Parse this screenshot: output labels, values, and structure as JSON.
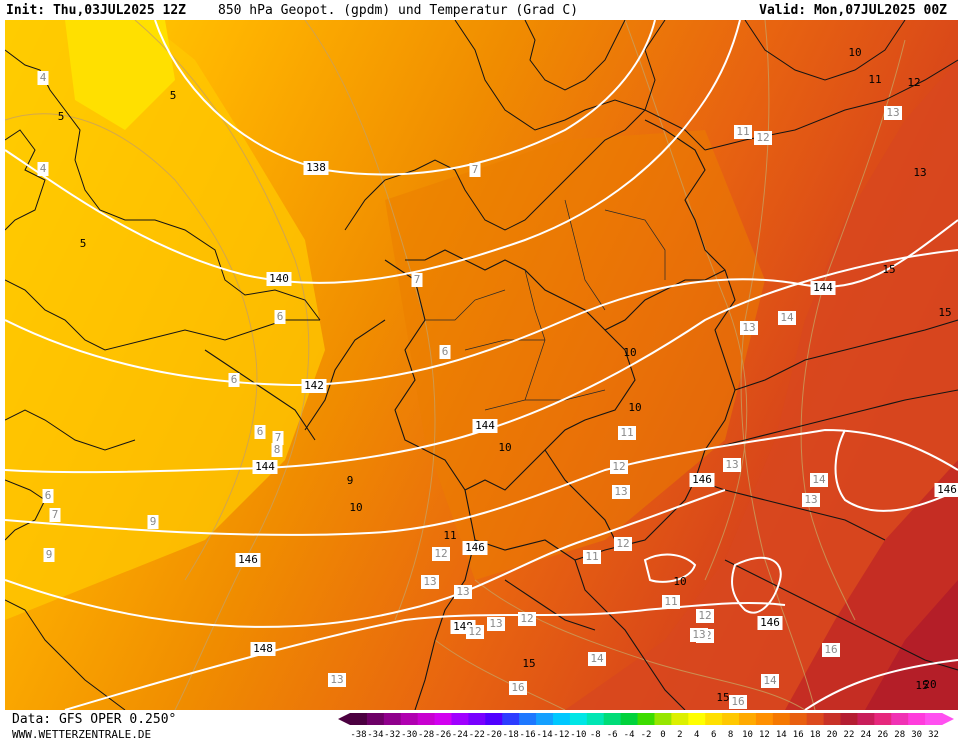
{
  "header": {
    "init": "Init: Thu,03JUL2025 12Z",
    "title": "850 hPa Geopot. (gpdm) und Temperatur (Grad C)",
    "valid": "Valid: Mon,07JUL2025 00Z"
  },
  "footer": {
    "source": "Data: GFS OPER 0.250°",
    "website": "WWW.WETTERZENTRALE.DE"
  },
  "legend": {
    "ticks": [
      "-38",
      "-34",
      "-32",
      "-30",
      "-28",
      "-26",
      "-24",
      "-22",
      "-20",
      "-18",
      "-16",
      "-14",
      "-12",
      "-10",
      "-8",
      "-6",
      "-4",
      "-2",
      "0",
      "2",
      "4",
      "6",
      "8",
      "10",
      "12",
      "14",
      "16",
      "18",
      "20",
      "22",
      "24",
      "26",
      "28",
      "30",
      "32"
    ],
    "colors": [
      "#4b0040",
      "#6d0066",
      "#8f008c",
      "#b000b0",
      "#c800d0",
      "#d200f0",
      "#a000ff",
      "#7800ff",
      "#5000ff",
      "#2c3cff",
      "#1e78ff",
      "#14a0ff",
      "#00c8ff",
      "#00e6e6",
      "#00e6b4",
      "#00dc78",
      "#00d23c",
      "#3cdc00",
      "#96e600",
      "#dcf000",
      "#ffff00",
      "#ffe000",
      "#ffc800",
      "#ffaa00",
      "#ff9000",
      "#f57800",
      "#e85f10",
      "#dc4a1e",
      "#c83228",
      "#b41e32",
      "#c81e5a",
      "#e6287d",
      "#f032b4",
      "#ff3cdc",
      "#ff50f0"
    ]
  },
  "geopotential_labels": [
    {
      "text": "138"
    },
    {
      "text": "140"
    },
    {
      "text": "142"
    },
    {
      "text": "144"
    },
    {
      "text": "144"
    },
    {
      "text": "144"
    },
    {
      "text": "146"
    },
    {
      "text": "146"
    },
    {
      "text": "146"
    },
    {
      "text": "146"
    },
    {
      "text": "146"
    },
    {
      "text": "148"
    },
    {
      "text": "148"
    }
  ],
  "temperature_labels_black": [
    {
      "text": "10"
    },
    {
      "text": "11"
    },
    {
      "text": "12"
    },
    {
      "text": "13"
    },
    {
      "text": "15"
    },
    {
      "text": "15"
    },
    {
      "text": "15"
    },
    {
      "text": "5"
    },
    {
      "text": "5"
    },
    {
      "text": "5"
    },
    {
      "text": "9"
    },
    {
      "text": "10"
    },
    {
      "text": "10"
    },
    {
      "text": "10"
    },
    {
      "text": "10"
    },
    {
      "text": "10"
    },
    {
      "text": "11"
    },
    {
      "text": "20"
    },
    {
      "text": "15"
    },
    {
      "text": "15"
    }
  ],
  "temperature_labels_white": [
    {
      "text": "4"
    },
    {
      "text": "4"
    },
    {
      "text": "11"
    },
    {
      "text": "12"
    },
    {
      "text": "7"
    },
    {
      "text": "6"
    },
    {
      "text": "6"
    },
    {
      "text": "6"
    },
    {
      "text": "7"
    },
    {
      "text": "8"
    },
    {
      "text": "9"
    },
    {
      "text": "6"
    },
    {
      "text": "7"
    },
    {
      "text": "9"
    },
    {
      "text": "13"
    },
    {
      "text": "14"
    },
    {
      "text": "11"
    },
    {
      "text": "12"
    },
    {
      "text": "13"
    },
    {
      "text": "12"
    },
    {
      "text": "13"
    },
    {
      "text": "14"
    },
    {
      "text": "13"
    },
    {
      "text": "13"
    },
    {
      "text": "12"
    },
    {
      "text": "11"
    },
    {
      "text": "12"
    },
    {
      "text": "12"
    },
    {
      "text": "13"
    },
    {
      "text": "13"
    },
    {
      "text": "13"
    },
    {
      "text": "12"
    },
    {
      "text": "11"
    },
    {
      "text": "12"
    },
    {
      "text": "13"
    },
    {
      "text": "14"
    },
    {
      "text": "16"
    },
    {
      "text": "16"
    },
    {
      "text": "14"
    },
    {
      "text": "16"
    },
    {
      "text": "13"
    },
    {
      "text": "7"
    },
    {
      "text": "6"
    }
  ]
}
